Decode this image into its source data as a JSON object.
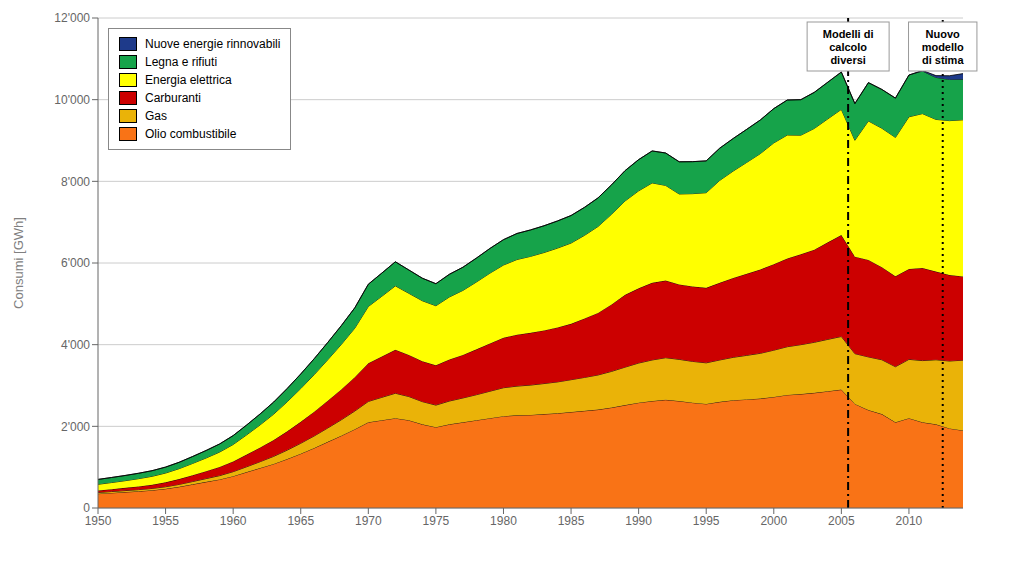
{
  "chart_data": {
    "type": "area",
    "stacked": true,
    "x": [
      1950,
      1951,
      1952,
      1953,
      1954,
      1955,
      1956,
      1957,
      1958,
      1959,
      1960,
      1961,
      1962,
      1963,
      1964,
      1965,
      1966,
      1967,
      1968,
      1969,
      1970,
      1971,
      1972,
      1973,
      1974,
      1975,
      1976,
      1977,
      1978,
      1979,
      1980,
      1981,
      1982,
      1983,
      1984,
      1985,
      1986,
      1987,
      1988,
      1989,
      1990,
      1991,
      1992,
      1993,
      1994,
      1995,
      1996,
      1997,
      1998,
      1999,
      2000,
      2001,
      2002,
      2003,
      2004,
      2005,
      2006,
      2007,
      2008,
      2009,
      2010,
      2011,
      2012,
      2013,
      2014
    ],
    "series": [
      {
        "name": "Olio combustibile",
        "color": "#F97316",
        "values": [
          350,
          370,
          390,
          410,
          435,
          470,
          520,
          580,
          640,
          700,
          780,
          880,
          980,
          1080,
          1200,
          1330,
          1470,
          1620,
          1770,
          1930,
          2100,
          2150,
          2200,
          2150,
          2050,
          1980,
          2050,
          2100,
          2150,
          2200,
          2250,
          2270,
          2280,
          2300,
          2320,
          2350,
          2380,
          2410,
          2460,
          2520,
          2580,
          2620,
          2650,
          2620,
          2580,
          2550,
          2600,
          2640,
          2660,
          2680,
          2720,
          2770,
          2790,
          2820,
          2860,
          2900,
          2550,
          2400,
          2300,
          2100,
          2200,
          2100,
          2050,
          1950,
          1900
        ]
      },
      {
        "name": "Gas",
        "color": "#EAB308",
        "values": [
          30,
          33,
          36,
          40,
          44,
          50,
          58,
          68,
          80,
          93,
          110,
          130,
          155,
          185,
          218,
          255,
          295,
          340,
          390,
          445,
          510,
          560,
          610,
          580,
          555,
          540,
          570,
          595,
          625,
          660,
          695,
          715,
          730,
          748,
          768,
          792,
          818,
          848,
          886,
          930,
          970,
          1005,
          1030,
          1020,
          1010,
          1005,
          1025,
          1050,
          1078,
          1108,
          1145,
          1180,
          1210,
          1238,
          1270,
          1300,
          1230,
          1300,
          1330,
          1360,
          1440,
          1510,
          1580,
          1650,
          1720
        ]
      },
      {
        "name": "Carburanti",
        "color": "#CC0000",
        "values": [
          50,
          58,
          67,
          78,
          90,
          108,
          130,
          155,
          182,
          213,
          250,
          298,
          348,
          400,
          460,
          525,
          595,
          668,
          745,
          830,
          935,
          1000,
          1065,
          1020,
          990,
          975,
          1018,
          1055,
          1110,
          1170,
          1225,
          1260,
          1280,
          1302,
          1335,
          1368,
          1445,
          1520,
          1640,
          1770,
          1830,
          1890,
          1890,
          1836,
          1836,
          1836,
          1890,
          1944,
          1998,
          2052,
          2106,
          2160,
          2214,
          2268,
          2376,
          2484,
          2376,
          2376,
          2268,
          2214,
          2214,
          2268,
          2160,
          2106,
          2052
        ]
      },
      {
        "name": "Energia elettrica",
        "color": "#FFFF00",
        "values": [
          150,
          162,
          175,
          190,
          207,
          228,
          255,
          288,
          323,
          364,
          415,
          483,
          554,
          634,
          724,
          815,
          908,
          1003,
          1100,
          1200,
          1390,
          1475,
          1565,
          1508,
          1480,
          1458,
          1530,
          1579,
          1650,
          1722,
          1780,
          1840,
          1872,
          1906,
          1942,
          1978,
          2035,
          2117,
          2210,
          2300,
          2387,
          2446,
          2330,
          2214,
          2272,
          2330,
          2508,
          2618,
          2728,
          2838,
          2970,
          3024,
          2916,
          2970,
          3024,
          3078,
          2850,
          3402,
          3402,
          3402,
          3726,
          3780,
          3726,
          3780,
          3834
        ]
      },
      {
        "name": "Legna e rifiuti",
        "color": "#16A34A",
        "values": [
          120,
          124,
          128,
          133,
          138,
          146,
          157,
          170,
          184,
          199,
          218,
          242,
          268,
          296,
          326,
          357,
          390,
          424,
          460,
          498,
          545,
          568,
          590,
          571,
          552,
          540,
          556,
          568,
          586,
          605,
          622,
          638,
          648,
          656,
          665,
          675,
          686,
          700,
          720,
          743,
          765,
          783,
          794,
          789,
          784,
          780,
          789,
          798,
          810,
          824,
          840,
          858,
          870,
          884,
          899,
          915,
          898,
          940,
          950,
          962,
          1024,
          1043,
          1028,
          1010,
          992
        ]
      },
      {
        "name": "Nuove energie rinnovabili",
        "color": "#1E3A8A",
        "values": [
          0,
          0,
          0,
          0,
          0,
          0,
          0,
          0,
          0,
          0,
          0,
          0,
          0,
          0,
          0,
          0,
          0,
          0,
          0,
          0,
          0,
          0,
          0,
          0,
          0,
          0,
          0,
          0,
          0,
          0,
          0,
          0,
          0,
          0,
          0,
          0,
          0,
          0,
          0,
          0,
          0,
          0,
          0,
          0,
          0,
          0,
          0,
          0,
          0,
          0,
          0,
          0,
          0,
          0,
          0,
          0,
          0,
          0,
          0,
          0,
          0,
          15,
          45,
          90,
          140
        ]
      }
    ],
    "xlim": [
      1950,
      2014
    ],
    "xticks": [
      1950,
      1955,
      1960,
      1965,
      1970,
      1975,
      1980,
      1985,
      1990,
      1995,
      2000,
      2005,
      2010
    ],
    "ylim": [
      0,
      12000
    ],
    "yticks": [
      0,
      {
        "value": 2000,
        "label": "2'000"
      },
      {
        "value": 4000,
        "label": "4'000"
      },
      {
        "value": 6000,
        "label": "6'000"
      },
      {
        "value": 8000,
        "label": "8'000"
      },
      {
        "value": 10000,
        "label": "10'000"
      },
      {
        "value": 12000,
        "label": "12'000"
      }
    ],
    "ylabel": "Consumi [GWh]",
    "grid": true,
    "legend": "upper left",
    "vlines": [
      {
        "x": 2005.5,
        "line_style": "dashdot"
      },
      {
        "x": 2012.5,
        "line_style": "dotted"
      }
    ],
    "annotations": [
      {
        "text": "Modelli di\ncalcolo\ndiversi",
        "x": 2005.5
      },
      {
        "text": "Nuovo\nmodello\ndi stima",
        "x": 2012.5
      }
    ]
  }
}
